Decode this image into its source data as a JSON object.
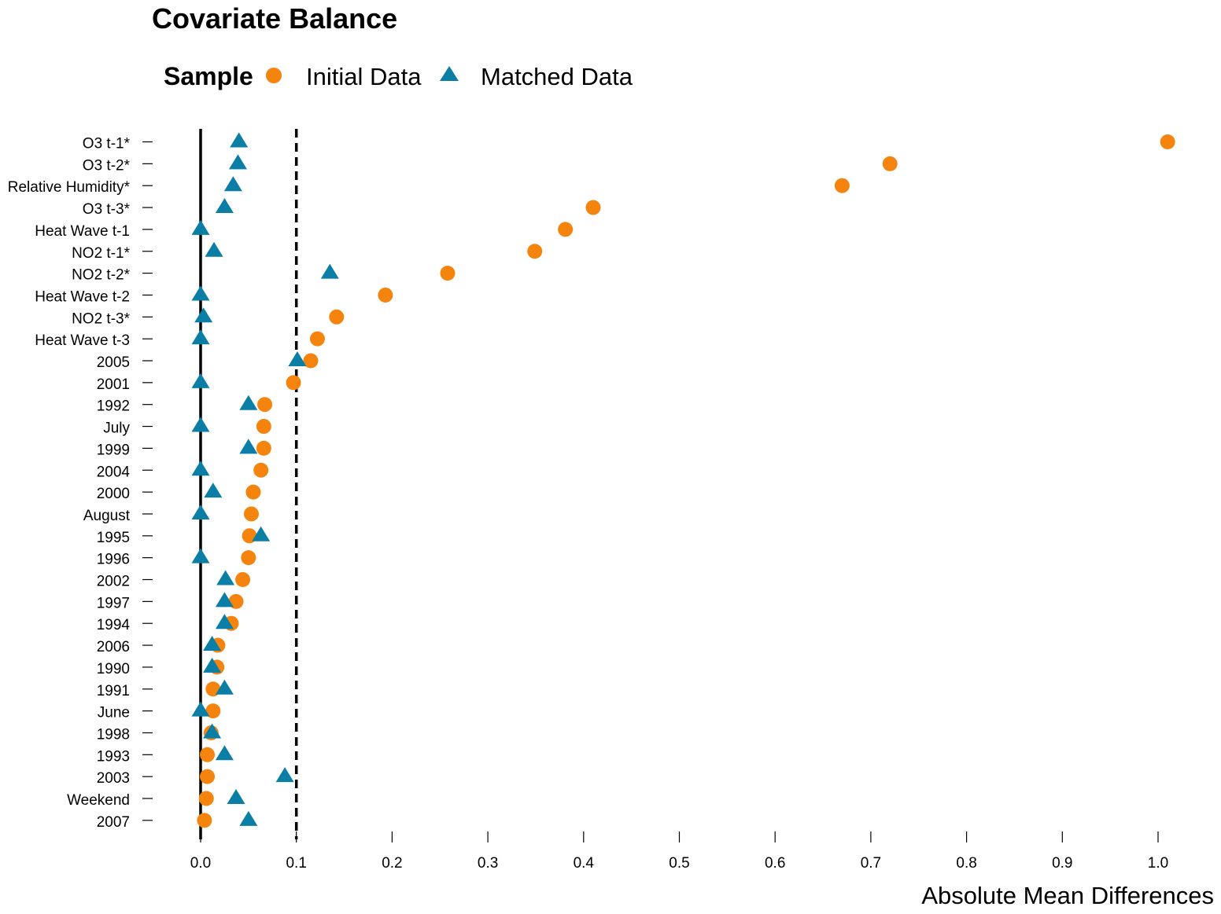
{
  "chart_data": {
    "type": "scatter",
    "title": "Covariate Balance",
    "legend": {
      "title": "Sample",
      "position": "top-left"
    },
    "xlabel": "Absolute Mean Differences",
    "ylabel": "",
    "xlim": [
      0,
      1.0
    ],
    "x_ticks": [
      "0.0",
      "0.1",
      "0.2",
      "0.3",
      "0.4",
      "0.5",
      "0.6",
      "0.7",
      "0.8",
      "0.9",
      "1.0"
    ],
    "reference_lines": [
      {
        "x": 0,
        "style": "solid"
      },
      {
        "x": 0.1,
        "style": "dashed"
      }
    ],
    "grid": false,
    "categories": [
      "O3 t-1*",
      "O3 t-2*",
      "Relative Humidity*",
      "O3 t-3*",
      "Heat Wave t-1",
      "NO2 t-1*",
      "NO2 t-2*",
      "Heat Wave t-2",
      "NO2 t-3*",
      "Heat Wave t-3",
      "2005",
      "2001",
      "1992",
      "July",
      "1999",
      "2004",
      "2000",
      "August",
      "1995",
      "1996",
      "2002",
      "1997",
      "1994",
      "2006",
      "1990",
      "1991",
      "June",
      "1998",
      "1993",
      "2003",
      "Weekend",
      "2007"
    ],
    "series": [
      {
        "name": "Initial Data",
        "marker": "circle",
        "color": "#F5840F",
        "values": [
          1.01,
          0.72,
          0.67,
          0.41,
          0.381,
          0.349,
          0.258,
          0.193,
          0.142,
          0.122,
          0.115,
          0.097,
          0.067,
          0.066,
          0.066,
          0.063,
          0.055,
          0.053,
          0.051,
          0.05,
          0.044,
          0.037,
          0.032,
          0.018,
          0.017,
          0.013,
          0.013,
          0.011,
          0.007,
          0.007,
          0.006,
          0.004
        ]
      },
      {
        "name": "Matched Data",
        "marker": "triangle",
        "color": "#0A7EA4",
        "values": [
          0.04,
          0.039,
          0.034,
          0.025,
          0.0,
          0.014,
          0.135,
          0.0,
          0.003,
          0.0,
          0.101,
          0.0,
          0.05,
          0.0,
          0.05,
          0.0,
          0.013,
          0.0,
          0.063,
          0.0,
          0.026,
          0.025,
          0.025,
          0.012,
          0.012,
          0.025,
          0.0,
          0.012,
          0.025,
          0.088,
          0.037,
          0.05
        ]
      }
    ]
  }
}
